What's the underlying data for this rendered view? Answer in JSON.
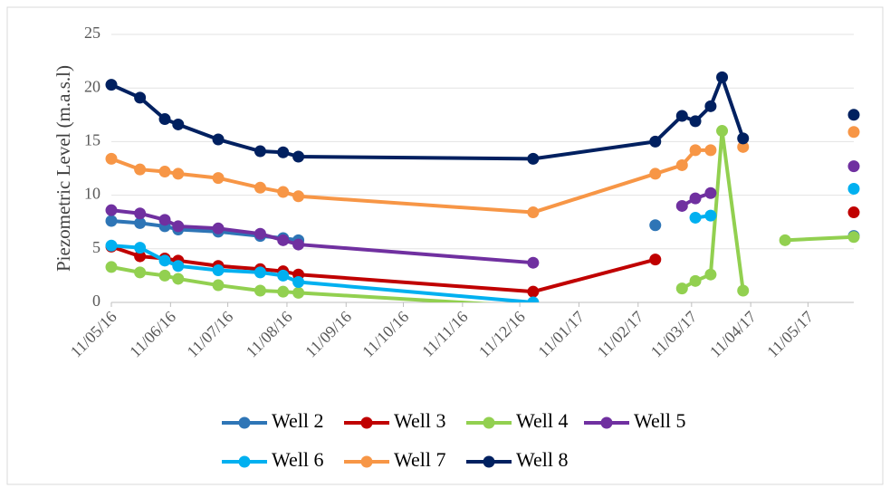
{
  "chart_data": {
    "type": "line",
    "y_label": "Piezometric Level (m.a.s.l)",
    "xlim": [
      "2016-05-11",
      "2017-06-04"
    ],
    "xticks": [
      {
        "value": "2016-05-11",
        "label": "11/05/16"
      },
      {
        "value": "2016-06-11",
        "label": "11/06/16"
      },
      {
        "value": "2016-07-11",
        "label": "11/07/16"
      },
      {
        "value": "2016-08-11",
        "label": "11/08/16"
      },
      {
        "value": "2016-09-11",
        "label": "11/09/16"
      },
      {
        "value": "2016-10-11",
        "label": "11/10/16"
      },
      {
        "value": "2016-11-11",
        "label": "11/11/16"
      },
      {
        "value": "2016-12-11",
        "label": "11/12/16"
      },
      {
        "value": "2017-01-11",
        "label": "11/01/17"
      },
      {
        "value": "2017-02-11",
        "label": "11/02/17"
      },
      {
        "value": "2017-03-11",
        "label": "11/03/17"
      },
      {
        "value": "2017-04-11",
        "label": "11/04/17"
      },
      {
        "value": "2017-05-11",
        "label": "11/05/17"
      }
    ],
    "ylim": [
      0,
      25
    ],
    "yticks": [
      0,
      5,
      10,
      15,
      20,
      25
    ],
    "grid": true,
    "series": [
      {
        "name": "Well 2",
        "color": "#2e75b6",
        "x": [
          "2016-05-11",
          "2016-05-26",
          "2016-06-08",
          "2016-06-15",
          "2016-07-06",
          "2016-07-28",
          "2016-08-09",
          "2016-08-17",
          null,
          "2017-02-20",
          null,
          "2017-06-04"
        ],
        "values": [
          7.6,
          7.4,
          7.1,
          6.8,
          6.6,
          6.2,
          6.0,
          5.8,
          null,
          7.2,
          null,
          6.2
        ]
      },
      {
        "name": "Well 3",
        "color": "#c00000",
        "x": [
          "2016-05-11",
          "2016-05-26",
          "2016-06-08",
          "2016-06-15",
          "2016-07-06",
          "2016-07-28",
          "2016-08-09",
          "2016-08-17",
          "2016-12-18",
          "2017-02-20",
          null,
          "2017-06-04"
        ],
        "values": [
          5.2,
          4.3,
          4.1,
          3.9,
          3.4,
          3.1,
          2.9,
          2.6,
          1.0,
          4.0,
          null,
          8.4
        ]
      },
      {
        "name": "Well 4",
        "color": "#92d050",
        "x": [
          "2016-05-11",
          "2016-05-26",
          "2016-06-08",
          "2016-06-15",
          "2016-07-06",
          "2016-07-28",
          "2016-08-09",
          "2016-08-17",
          "2016-12-18",
          null,
          "2017-03-06",
          "2017-03-13",
          "2017-03-21",
          "2017-03-27",
          "2017-04-07",
          null,
          "2017-04-29",
          "2017-06-04"
        ],
        "values": [
          3.3,
          2.8,
          2.5,
          2.2,
          1.6,
          1.1,
          1.0,
          0.9,
          -0.4,
          null,
          1.3,
          2.0,
          2.6,
          16.0,
          1.1,
          null,
          5.8,
          6.1
        ]
      },
      {
        "name": "Well 5",
        "color": "#7030a0",
        "x": [
          "2016-05-11",
          "2016-05-26",
          "2016-06-08",
          "2016-06-15",
          "2016-07-06",
          "2016-07-28",
          "2016-08-09",
          "2016-08-17",
          "2016-12-18",
          null,
          "2017-03-06",
          "2017-03-13",
          "2017-03-21",
          null,
          "2017-06-04"
        ],
        "values": [
          8.6,
          8.3,
          7.7,
          7.1,
          6.9,
          6.4,
          5.8,
          5.4,
          3.7,
          null,
          9.0,
          9.7,
          10.2,
          null,
          12.7
        ]
      },
      {
        "name": "Well 6",
        "color": "#00b0f0",
        "x": [
          "2016-05-11",
          "2016-05-26",
          "2016-06-08",
          "2016-06-15",
          "2016-07-06",
          "2016-07-28",
          "2016-08-09",
          "2016-08-17",
          "2016-12-18",
          null,
          "2017-03-13",
          "2017-03-21",
          null,
          "2017-06-04"
        ],
        "values": [
          5.3,
          5.1,
          3.9,
          3.4,
          3.0,
          2.8,
          2.5,
          1.9,
          0.0,
          null,
          7.9,
          8.1,
          null,
          10.6
        ]
      },
      {
        "name": "Well 7",
        "color": "#f79646",
        "x": [
          "2016-05-11",
          "2016-05-26",
          "2016-06-08",
          "2016-06-15",
          "2016-07-06",
          "2016-07-28",
          "2016-08-09",
          "2016-08-17",
          "2016-12-18",
          "2017-02-20",
          "2017-03-06",
          "2017-03-13",
          "2017-03-21",
          null,
          "2017-04-07",
          null,
          "2017-06-04"
        ],
        "values": [
          13.4,
          12.4,
          12.2,
          12.0,
          11.6,
          10.7,
          10.3,
          9.9,
          8.4,
          12.0,
          12.8,
          14.2,
          14.2,
          null,
          14.5,
          null,
          15.9
        ]
      },
      {
        "name": "Well 8",
        "color": "#002060",
        "x": [
          "2016-05-11",
          "2016-05-26",
          "2016-06-08",
          "2016-06-15",
          "2016-07-06",
          "2016-07-28",
          "2016-08-09",
          "2016-08-17",
          "2016-12-18",
          "2017-02-20",
          "2017-03-06",
          "2017-03-13",
          "2017-03-21",
          "2017-03-27",
          "2017-04-07",
          null,
          "2017-06-04"
        ],
        "values": [
          20.3,
          19.1,
          17.1,
          16.6,
          15.2,
          14.1,
          14.0,
          13.6,
          13.4,
          15.0,
          17.4,
          16.9,
          18.3,
          21.0,
          15.3,
          null,
          17.5
        ]
      }
    ]
  }
}
